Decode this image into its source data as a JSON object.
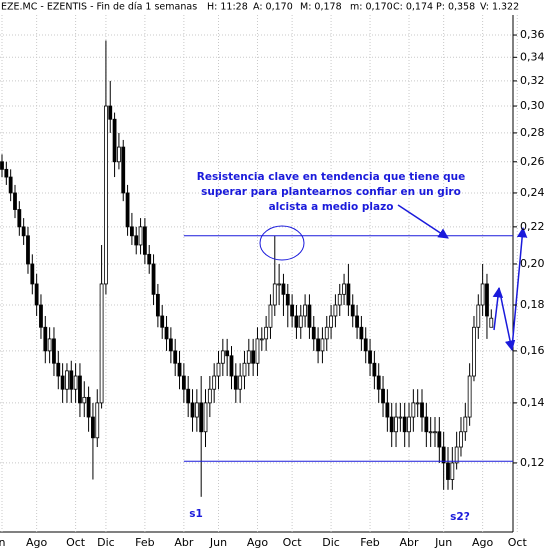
{
  "chart_data": {
    "type": "candlestick",
    "title": "EZE.MC - EZENTIS - Fin de día 1 semanas",
    "header_fields": [
      "H: 11:28",
      "A: 0,170",
      "M: 0,178",
      "m: 0,170",
      "C: 0,174",
      "P: 0,358",
      "V: 1.322"
    ],
    "log_scale": true,
    "grid": true,
    "up_color": "#ffffff",
    "down_color": "#000000",
    "ylim": [
      0.1005,
      0.379
    ],
    "yticks": [
      {
        "value": 0.12,
        "label": "0,12"
      },
      {
        "value": 0.14,
        "label": "0,14"
      },
      {
        "value": 0.16,
        "label": "0,16"
      },
      {
        "value": 0.18,
        "label": "0,18"
      },
      {
        "value": 0.2,
        "label": "0,20"
      },
      {
        "value": 0.22,
        "label": "0,22"
      },
      {
        "value": 0.24,
        "label": "0,24"
      },
      {
        "value": 0.26,
        "label": "0,26"
      },
      {
        "value": 0.28,
        "label": "0,28"
      },
      {
        "value": 0.3,
        "label": "0,30"
      },
      {
        "value": 0.32,
        "label": "0,32"
      },
      {
        "value": 0.34,
        "label": "0,34"
      },
      {
        "value": 0.36,
        "label": "0,36"
      }
    ],
    "categories": [
      "n",
      null,
      null,
      null,
      null,
      null,
      null,
      null,
      "Ago",
      null,
      null,
      null,
      null,
      null,
      null,
      null,
      null,
      "Oct",
      null,
      null,
      null,
      null,
      null,
      null,
      "Dic",
      null,
      null,
      null,
      null,
      null,
      null,
      null,
      null,
      "Feb",
      null,
      null,
      null,
      null,
      null,
      null,
      null,
      null,
      "Abr",
      null,
      null,
      null,
      null,
      null,
      null,
      null,
      "Jun",
      null,
      null,
      null,
      null,
      null,
      null,
      null,
      null,
      "Ago",
      null,
      null,
      null,
      null,
      null,
      null,
      null,
      "Oct",
      null,
      null,
      null,
      null,
      null,
      null,
      null,
      null,
      "Dic",
      null,
      null,
      null,
      null,
      null,
      null,
      null,
      null,
      "Feb",
      null,
      null,
      null,
      null,
      null,
      null,
      null,
      null,
      "Abr",
      null,
      null,
      null,
      null,
      null,
      null,
      null,
      "Jun",
      null,
      null,
      null,
      null,
      null,
      null,
      null,
      null,
      "Ago",
      null,
      null,
      null,
      null,
      null,
      null,
      null,
      "Oct"
    ],
    "ohlc": [
      [
        0.26,
        0.265,
        0.25,
        0.255
      ],
      [
        0.255,
        0.26,
        0.245,
        0.25
      ],
      [
        0.25,
        0.255,
        0.235,
        0.24
      ],
      [
        0.24,
        0.245,
        0.225,
        0.23
      ],
      [
        0.23,
        0.235,
        0.215,
        0.22
      ],
      [
        0.22,
        0.225,
        0.21,
        0.215
      ],
      [
        0.215,
        0.22,
        0.195,
        0.2
      ],
      [
        0.2,
        0.205,
        0.185,
        0.19
      ],
      [
        0.19,
        0.195,
        0.175,
        0.18
      ],
      [
        0.18,
        0.185,
        0.165,
        0.17
      ],
      [
        0.17,
        0.175,
        0.155,
        0.16
      ],
      [
        0.16,
        0.17,
        0.155,
        0.165
      ],
      [
        0.165,
        0.17,
        0.15,
        0.155
      ],
      [
        0.155,
        0.16,
        0.145,
        0.15
      ],
      [
        0.15,
        0.155,
        0.14,
        0.145
      ],
      [
        0.145,
        0.155,
        0.14,
        0.152
      ],
      [
        0.152,
        0.156,
        0.14,
        0.145
      ],
      [
        0.145,
        0.155,
        0.14,
        0.15
      ],
      [
        0.15,
        0.155,
        0.135,
        0.14
      ],
      [
        0.14,
        0.148,
        0.135,
        0.142
      ],
      [
        0.142,
        0.146,
        0.13,
        0.135
      ],
      [
        0.135,
        0.14,
        0.115,
        0.128
      ],
      [
        0.128,
        0.145,
        0.125,
        0.14
      ],
      [
        0.14,
        0.21,
        0.138,
        0.19
      ],
      [
        0.19,
        0.355,
        0.185,
        0.3
      ],
      [
        0.3,
        0.32,
        0.28,
        0.29
      ],
      [
        0.29,
        0.295,
        0.25,
        0.26
      ],
      [
        0.26,
        0.28,
        0.255,
        0.27
      ],
      [
        0.27,
        0.275,
        0.235,
        0.24
      ],
      [
        0.24,
        0.245,
        0.215,
        0.22
      ],
      [
        0.22,
        0.228,
        0.21,
        0.215
      ],
      [
        0.215,
        0.22,
        0.205,
        0.21
      ],
      [
        0.21,
        0.225,
        0.205,
        0.22
      ],
      [
        0.22,
        0.225,
        0.2,
        0.205
      ],
      [
        0.205,
        0.21,
        0.195,
        0.2
      ],
      [
        0.2,
        0.205,
        0.18,
        0.185
      ],
      [
        0.185,
        0.19,
        0.17,
        0.175
      ],
      [
        0.175,
        0.18,
        0.165,
        0.17
      ],
      [
        0.17,
        0.175,
        0.16,
        0.165
      ],
      [
        0.165,
        0.17,
        0.155,
        0.16
      ],
      [
        0.16,
        0.165,
        0.15,
        0.155
      ],
      [
        0.155,
        0.16,
        0.145,
        0.15
      ],
      [
        0.15,
        0.155,
        0.14,
        0.145
      ],
      [
        0.145,
        0.15,
        0.135,
        0.14
      ],
      [
        0.14,
        0.145,
        0.13,
        0.135
      ],
      [
        0.135,
        0.145,
        0.13,
        0.14
      ],
      [
        0.14,
        0.15,
        0.11,
        0.13
      ],
      [
        0.13,
        0.145,
        0.125,
        0.14
      ],
      [
        0.14,
        0.15,
        0.135,
        0.145
      ],
      [
        0.145,
        0.155,
        0.14,
        0.15
      ],
      [
        0.15,
        0.16,
        0.145,
        0.155
      ],
      [
        0.155,
        0.165,
        0.15,
        0.16
      ],
      [
        0.16,
        0.165,
        0.15,
        0.158
      ],
      [
        0.158,
        0.162,
        0.145,
        0.15
      ],
      [
        0.15,
        0.155,
        0.14,
        0.145
      ],
      [
        0.145,
        0.155,
        0.14,
        0.15
      ],
      [
        0.15,
        0.16,
        0.145,
        0.155
      ],
      [
        0.155,
        0.165,
        0.15,
        0.16
      ],
      [
        0.16,
        0.165,
        0.15,
        0.155
      ],
      [
        0.155,
        0.17,
        0.15,
        0.165
      ],
      [
        0.165,
        0.17,
        0.16,
        0.165
      ],
      [
        0.165,
        0.175,
        0.16,
        0.17
      ],
      [
        0.17,
        0.185,
        0.165,
        0.18
      ],
      [
        0.18,
        0.215,
        0.175,
        0.19
      ],
      [
        0.19,
        0.2,
        0.18,
        0.19
      ],
      [
        0.19,
        0.195,
        0.175,
        0.185
      ],
      [
        0.185,
        0.19,
        0.17,
        0.18
      ],
      [
        0.18,
        0.185,
        0.17,
        0.175
      ],
      [
        0.175,
        0.18,
        0.165,
        0.17
      ],
      [
        0.17,
        0.18,
        0.165,
        0.175
      ],
      [
        0.175,
        0.185,
        0.17,
        0.18
      ],
      [
        0.18,
        0.185,
        0.165,
        0.17
      ],
      [
        0.17,
        0.175,
        0.16,
        0.165
      ],
      [
        0.165,
        0.17,
        0.155,
        0.16
      ],
      [
        0.16,
        0.17,
        0.155,
        0.165
      ],
      [
        0.165,
        0.175,
        0.16,
        0.17
      ],
      [
        0.17,
        0.18,
        0.165,
        0.175
      ],
      [
        0.175,
        0.185,
        0.17,
        0.18
      ],
      [
        0.18,
        0.19,
        0.175,
        0.185
      ],
      [
        0.185,
        0.195,
        0.18,
        0.19
      ],
      [
        0.19,
        0.2,
        0.175,
        0.18
      ],
      [
        0.18,
        0.185,
        0.17,
        0.175
      ],
      [
        0.175,
        0.18,
        0.165,
        0.17
      ],
      [
        0.17,
        0.175,
        0.16,
        0.165
      ],
      [
        0.165,
        0.17,
        0.155,
        0.16
      ],
      [
        0.16,
        0.165,
        0.15,
        0.155
      ],
      [
        0.155,
        0.16,
        0.145,
        0.15
      ],
      [
        0.15,
        0.155,
        0.14,
        0.145
      ],
      [
        0.145,
        0.15,
        0.135,
        0.14
      ],
      [
        0.14,
        0.145,
        0.13,
        0.135
      ],
      [
        0.135,
        0.14,
        0.125,
        0.13
      ],
      [
        0.13,
        0.14,
        0.125,
        0.135
      ],
      [
        0.135,
        0.14,
        0.13,
        0.135
      ],
      [
        0.135,
        0.14,
        0.125,
        0.13
      ],
      [
        0.13,
        0.14,
        0.125,
        0.135
      ],
      [
        0.135,
        0.145,
        0.13,
        0.14
      ],
      [
        0.14,
        0.145,
        0.135,
        0.14
      ],
      [
        0.14,
        0.145,
        0.13,
        0.135
      ],
      [
        0.135,
        0.14,
        0.125,
        0.13
      ],
      [
        0.13,
        0.135,
        0.125,
        0.13
      ],
      [
        0.13,
        0.135,
        0.125,
        0.13
      ],
      [
        0.13,
        0.135,
        0.12,
        0.125
      ],
      [
        0.125,
        0.13,
        0.112,
        0.12
      ],
      [
        0.12,
        0.125,
        0.112,
        0.115
      ],
      [
        0.115,
        0.125,
        0.112,
        0.12
      ],
      [
        0.12,
        0.13,
        0.118,
        0.125
      ],
      [
        0.125,
        0.135,
        0.122,
        0.13
      ],
      [
        0.13,
        0.14,
        0.127,
        0.135
      ],
      [
        0.135,
        0.155,
        0.132,
        0.15
      ],
      [
        0.15,
        0.175,
        0.148,
        0.17
      ],
      [
        0.17,
        0.185,
        0.165,
        0.18
      ],
      [
        0.18,
        0.2,
        0.175,
        0.19
      ],
      [
        0.19,
        0.195,
        0.165,
        0.175
      ],
      [
        0.17,
        0.178,
        0.17,
        0.174
      ],
      null,
      null,
      null,
      null,
      null,
      null
    ],
    "hlines": [
      {
        "value": 0.215,
        "from": 42
      },
      {
        "value": 0.1205,
        "from": 42
      }
    ],
    "annotation": [
      "Resistencia clave en tendencia que tiene que",
      "superar para plantearnos confiar en un giro",
      "alcista a medio plazo"
    ],
    "support_labels": [
      "s1",
      "s2?"
    ]
  }
}
